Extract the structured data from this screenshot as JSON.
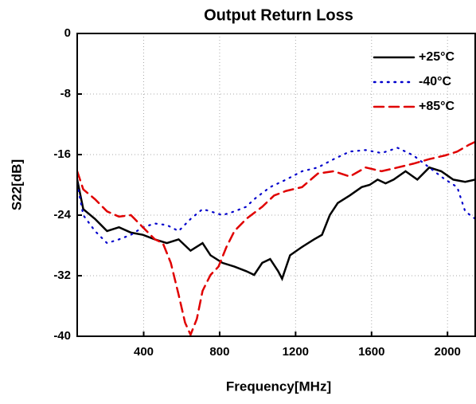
{
  "chart_data": {
    "type": "line",
    "title": "Output Return Loss",
    "x_label": "Frequency[MHz]",
    "y_label": "S22[dB]",
    "xlim": [
      50,
      2150
    ],
    "xticks": [
      400,
      800,
      1200,
      1600,
      2000
    ],
    "ylim": [
      -40,
      0
    ],
    "yticks": [
      0,
      -8,
      -16,
      -24,
      -32,
      -40
    ],
    "grid": true,
    "legend": "upper right",
    "series": [
      {
        "name": "+25°C",
        "color": "#000000",
        "style": "solid",
        "x": [
          50,
          82,
          144,
          207,
          270,
          333,
          396,
          459,
          522,
          584,
          647,
          710,
          752,
          815,
          878,
          940,
          982,
          1024,
          1066,
          1108,
          1129,
          1171,
          1234,
          1297,
          1339,
          1380,
          1422,
          1485,
          1548,
          1590,
          1632,
          1674,
          1716,
          1779,
          1841,
          1904,
          1967,
          2030,
          2093,
          2147
        ],
        "values": [
          -19.3,
          -23.2,
          -24.5,
          -26.1,
          -25.6,
          -26.3,
          -26.6,
          -27.2,
          -27.7,
          -27.2,
          -28.7,
          -27.7,
          -29.3,
          -30.3,
          -30.8,
          -31.4,
          -31.9,
          -30.3,
          -29.8,
          -31.4,
          -32.4,
          -29.3,
          -28.2,
          -27.2,
          -26.6,
          -24,
          -22.4,
          -21.4,
          -20.3,
          -20,
          -19.3,
          -19.8,
          -19.3,
          -18.2,
          -19.3,
          -17.7,
          -18.2,
          -19.3,
          -19.6,
          -19.3
        ]
      },
      {
        "name": "-40°C",
        "color": "#0000cc",
        "style": "dotted",
        "x": [
          50,
          82,
          144,
          207,
          270,
          333,
          396,
          459,
          522,
          584,
          647,
          710,
          752,
          815,
          878,
          940,
          982,
          1066,
          1150,
          1234,
          1317,
          1401,
          1485,
          1569,
          1653,
          1737,
          1820,
          1904,
          1988,
          2051,
          2093,
          2147
        ],
        "values": [
          -19.8,
          -24,
          -26.1,
          -27.7,
          -27.2,
          -26.6,
          -25.6,
          -25.1,
          -25.3,
          -26.1,
          -24.5,
          -23.2,
          -23.5,
          -24,
          -23.5,
          -22.9,
          -21.9,
          -20.3,
          -19.3,
          -18.2,
          -17.7,
          -16.6,
          -15.6,
          -15.4,
          -15.8,
          -15.1,
          -16.1,
          -17.7,
          -19.3,
          -20.3,
          -23.5,
          -24.5
        ]
      },
      {
        "name": "+85°C",
        "color": "#e00000",
        "style": "dashed",
        "x": [
          50,
          82,
          144,
          207,
          270,
          333,
          396,
          459,
          501,
          543,
          584,
          618,
          647,
          680,
          710,
          752,
          794,
          836,
          878,
          940,
          1024,
          1087,
          1150,
          1234,
          1317,
          1401,
          1485,
          1569,
          1653,
          1737,
          1820,
          1904,
          1988,
          2051,
          2114,
          2147
        ],
        "values": [
          -18.2,
          -20.6,
          -21.9,
          -23.5,
          -24.2,
          -24,
          -25.6,
          -27.2,
          -27.7,
          -30.3,
          -34.5,
          -38.2,
          -39.8,
          -37.7,
          -34,
          -31.9,
          -30.8,
          -28.2,
          -26.1,
          -24.5,
          -22.9,
          -21.4,
          -20.8,
          -20.3,
          -18.5,
          -18.2,
          -18.9,
          -17.7,
          -18.2,
          -17.7,
          -17.2,
          -16.6,
          -16.1,
          -15.6,
          -14.7,
          -14.3
        ]
      }
    ]
  }
}
